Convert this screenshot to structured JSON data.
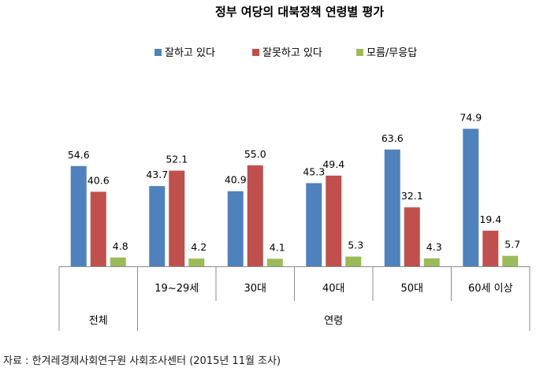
{
  "chart_data": {
    "type": "bar",
    "title": "정부 여당의 대북정책 연령별 평가",
    "series": [
      {
        "name": "잘하고 있다",
        "color": "#4F81BD",
        "values": [
          54.6,
          43.7,
          40.9,
          45.3,
          63.6,
          74.9
        ]
      },
      {
        "name": "잘못하고 있다",
        "color": "#C0504D",
        "values": [
          40.6,
          52.1,
          55.0,
          49.4,
          32.1,
          19.4
        ]
      },
      {
        "name": "모름/무응답",
        "color": "#9BBB59",
        "values": [
          4.8,
          4.2,
          4.1,
          5.3,
          4.3,
          5.7
        ]
      }
    ],
    "value_labels": [
      [
        "54.6",
        "43.7",
        "40.9",
        "45.3",
        "63.6",
        "74.9"
      ],
      [
        "40.6",
        "52.1",
        "55.0",
        "49.4",
        "32.1",
        "19.4"
      ],
      [
        "4.8",
        "4.2",
        "4.1",
        "5.3",
        "4.3",
        "5.7"
      ]
    ],
    "categories": [
      "",
      "19~29세",
      "30대",
      "40대",
      "50대",
      "60세 이상"
    ],
    "groups": [
      {
        "label": "전체",
        "span": 1
      },
      {
        "label": "연령",
        "span": 5
      }
    ],
    "ylim": [
      0,
      100
    ],
    "grid": false,
    "legend_position": "top-center"
  },
  "source_note": "자료 : 한겨레경제사회연구원 사회조사센터 (2015년 11월 조사)"
}
